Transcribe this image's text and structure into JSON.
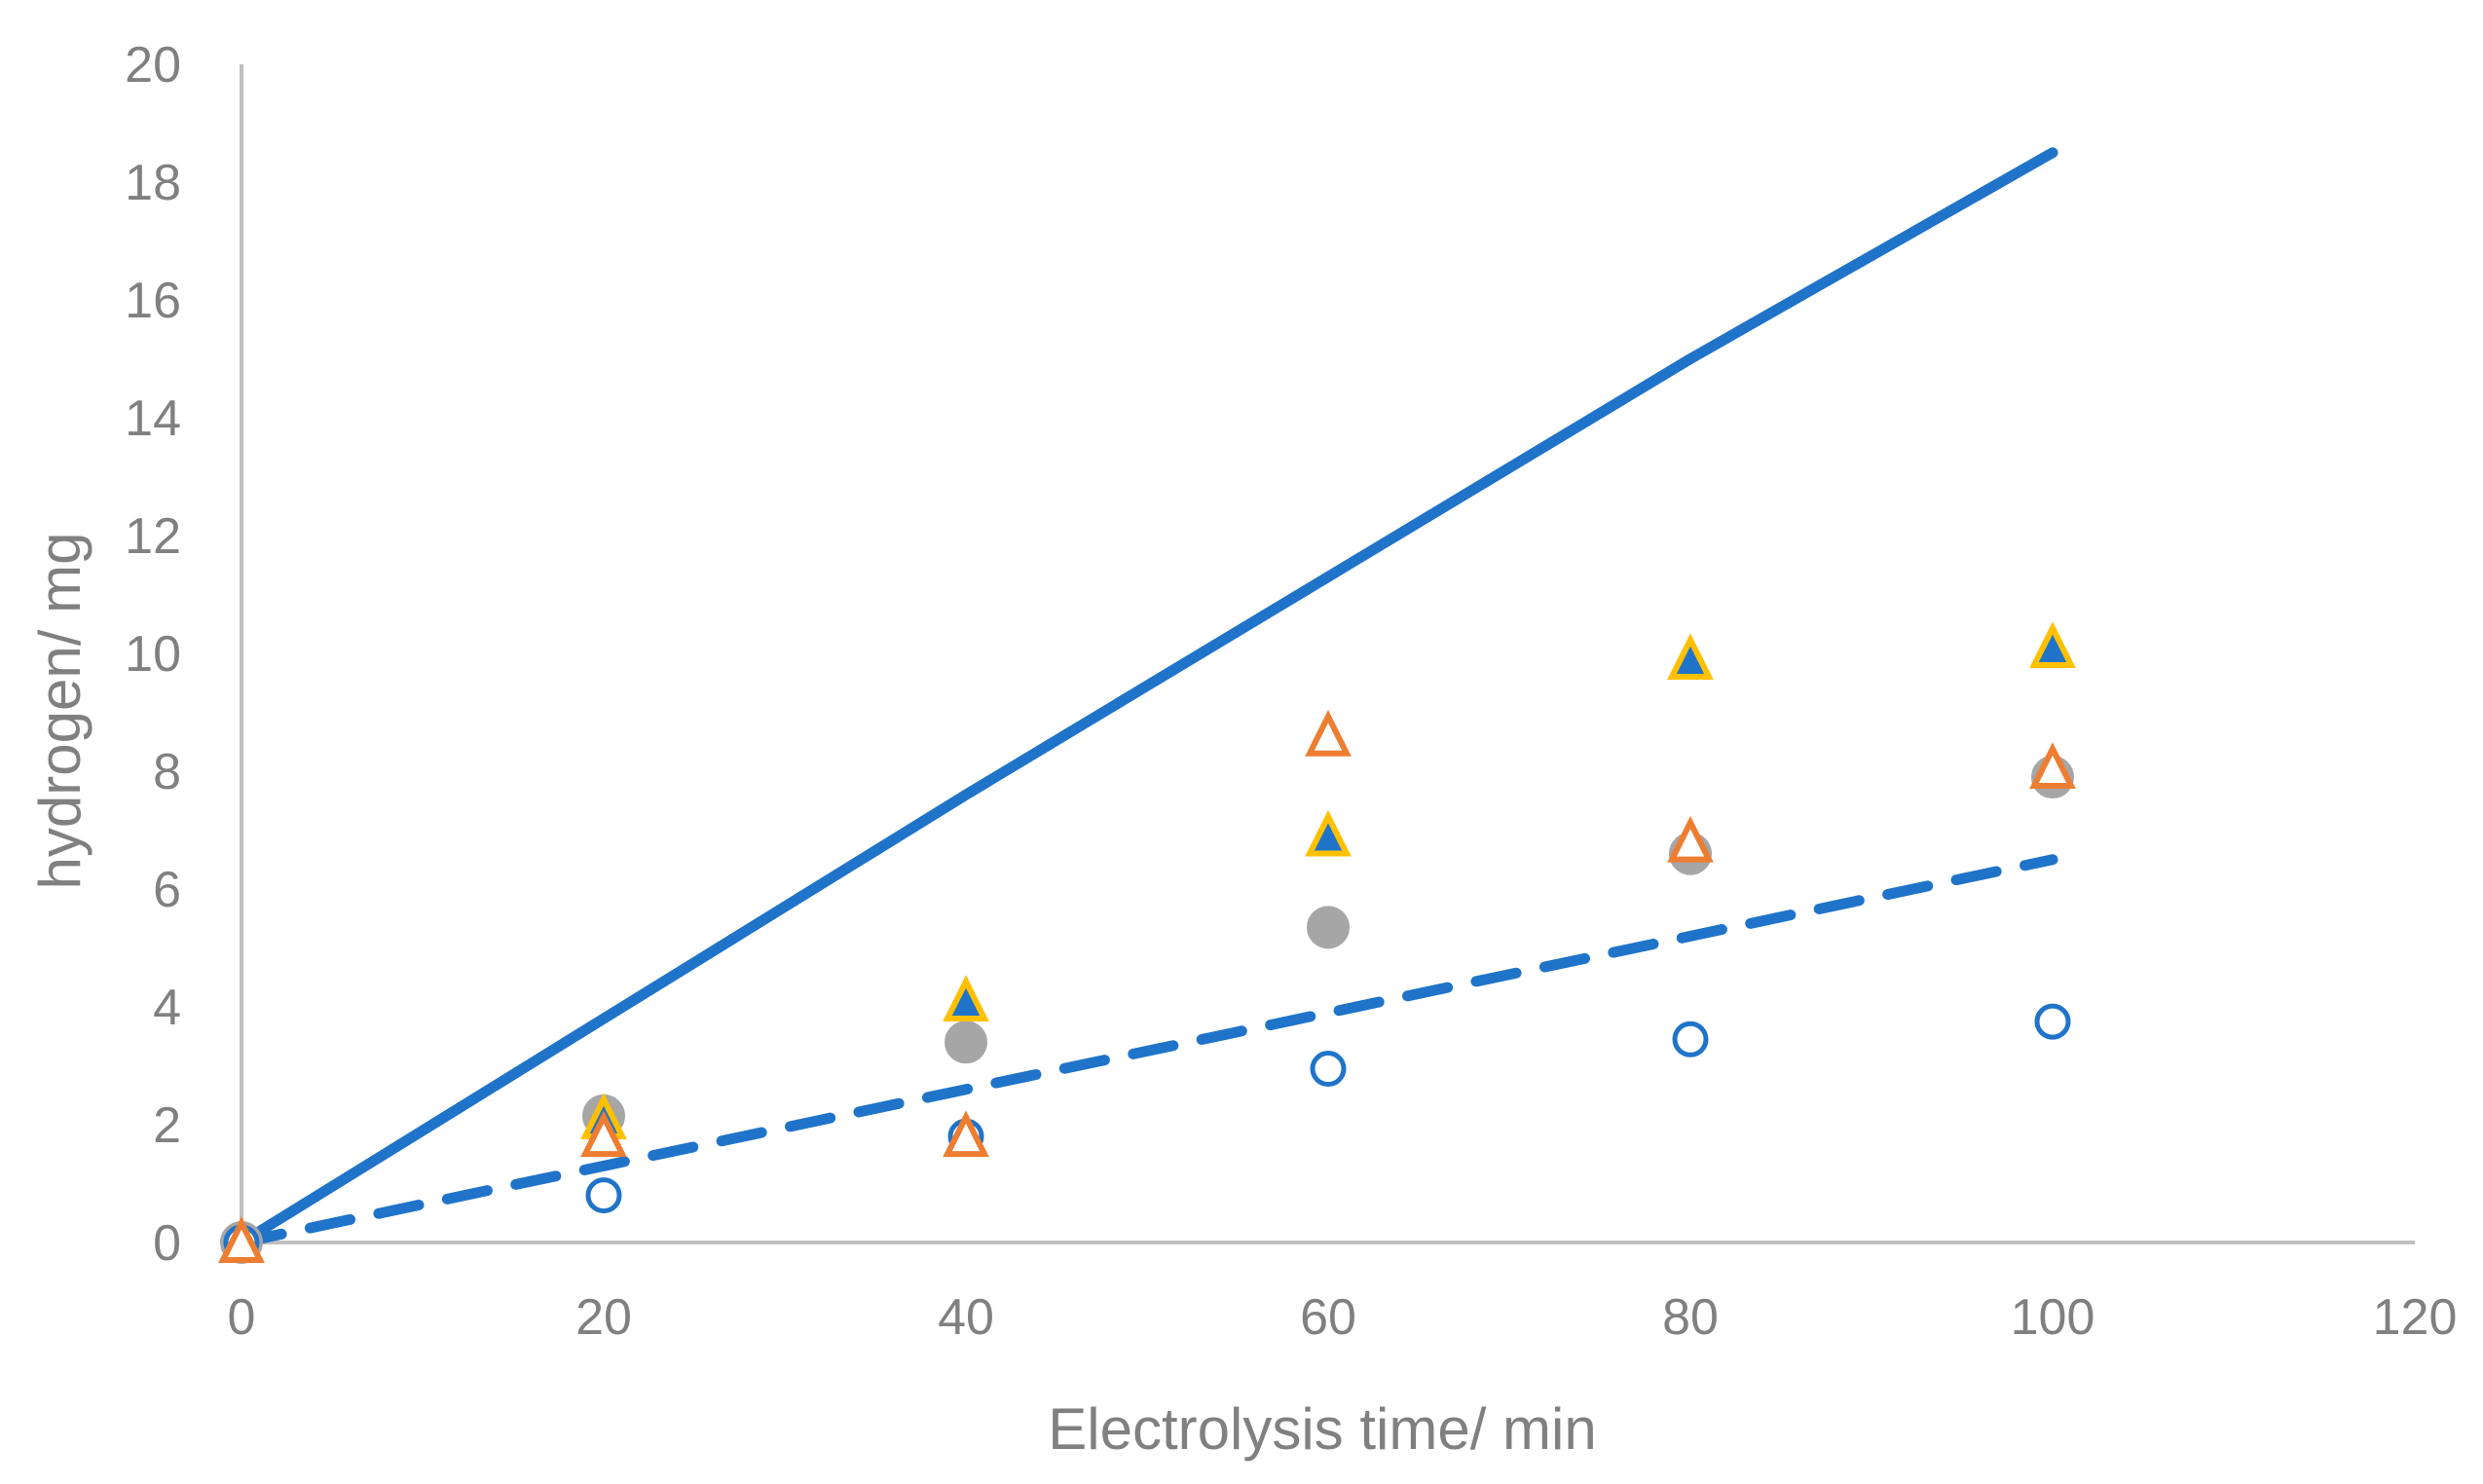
{
  "chart_data": {
    "type": "scatter",
    "title": "",
    "xlabel": "Electrolysis time/ min",
    "ylabel": "hydrogen/ mg",
    "xlim": [
      0,
      120
    ],
    "ylim": [
      0,
      20
    ],
    "xticks": [
      0,
      20,
      40,
      60,
      80,
      100,
      120
    ],
    "yticks": [
      0,
      2,
      4,
      6,
      8,
      10,
      12,
      14,
      16,
      18,
      20
    ],
    "grid": false,
    "legend": "none",
    "lines": [
      {
        "name": "theoretical (solid)",
        "style": "solid",
        "color": "#1f74c9",
        "x": [
          0,
          20,
          40,
          60,
          80,
          100
        ],
        "y": [
          0,
          3.8,
          7.6,
          11.3,
          15.0,
          18.5
        ]
      },
      {
        "name": "dashed trend",
        "style": "dashed",
        "color": "#1f74c9",
        "x": [
          0,
          20,
          40,
          60,
          80,
          100
        ],
        "y": [
          0,
          1.3,
          2.6,
          3.9,
          5.2,
          6.5
        ]
      }
    ],
    "series": [
      {
        "name": "gray filled circles",
        "marker": "filled-circle",
        "fill": "#a6a6a6",
        "stroke": "#a6a6a6",
        "x": [
          0,
          20,
          40,
          60,
          80,
          100
        ],
        "y": [
          0,
          2.15,
          3.4,
          5.35,
          6.6,
          7.9
        ]
      },
      {
        "name": "blue open circles",
        "marker": "open-circle",
        "fill": "#ffffff",
        "stroke": "#1f74c9",
        "x": [
          0,
          20,
          40,
          60,
          80,
          100
        ],
        "y": [
          0,
          0.8,
          1.8,
          2.95,
          3.45,
          3.75
        ]
      },
      {
        "name": "blue filled triangles with yellow outline",
        "marker": "triangle",
        "fill": "#1f74c9",
        "stroke": "#ffc000",
        "x": [
          0,
          20,
          40,
          60,
          80,
          100
        ],
        "y": [
          0,
          2.1,
          4.1,
          6.9,
          9.9,
          10.1
        ]
      },
      {
        "name": "orange open triangles",
        "marker": "triangle",
        "fill": "#ffffff",
        "stroke": "#ed7d31",
        "x": [
          0,
          20,
          40,
          60,
          80,
          100
        ],
        "y": [
          0,
          1.8,
          1.8,
          8.6,
          6.8,
          8.05
        ]
      }
    ]
  }
}
